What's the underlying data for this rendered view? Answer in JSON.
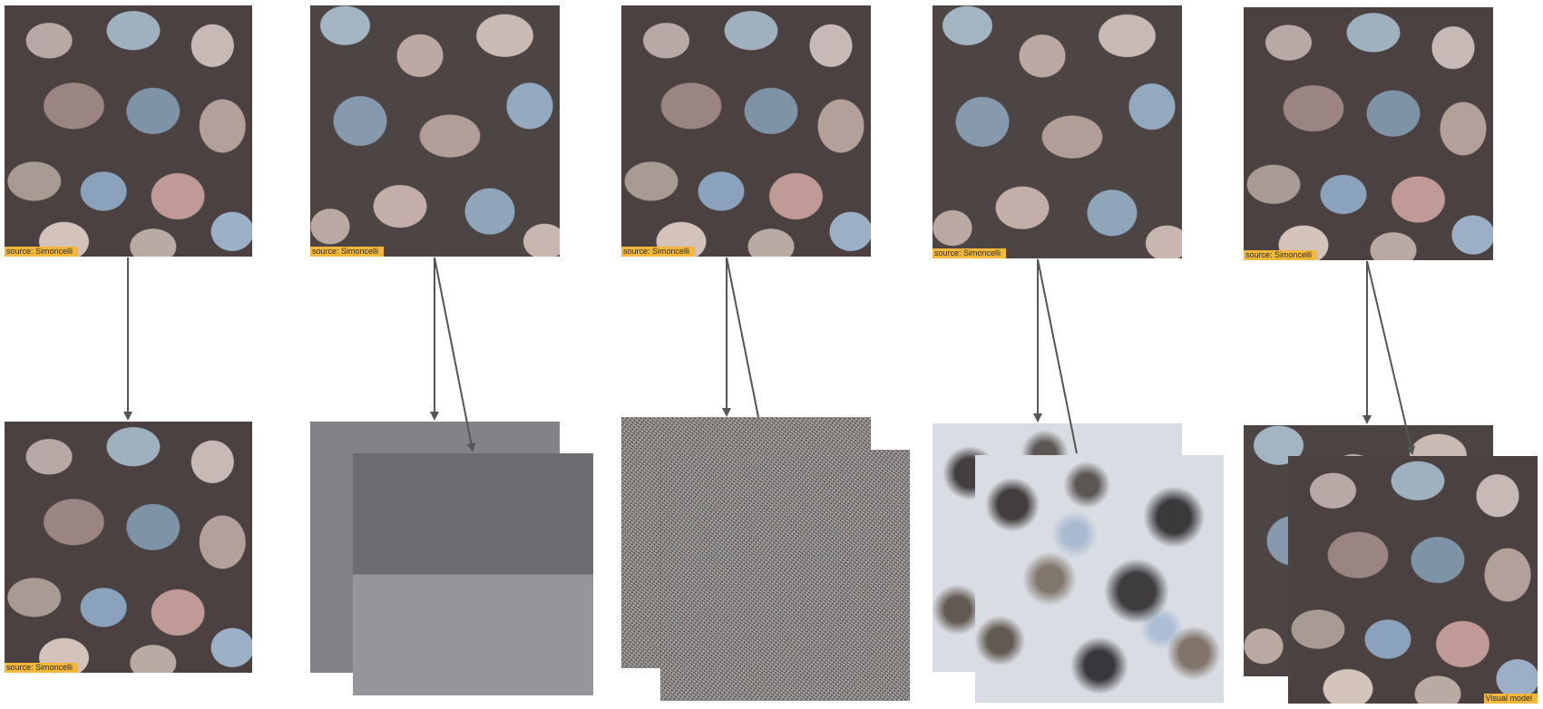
{
  "source_caption": "source: Simoncelli",
  "output_caption": "Visual model"
}
